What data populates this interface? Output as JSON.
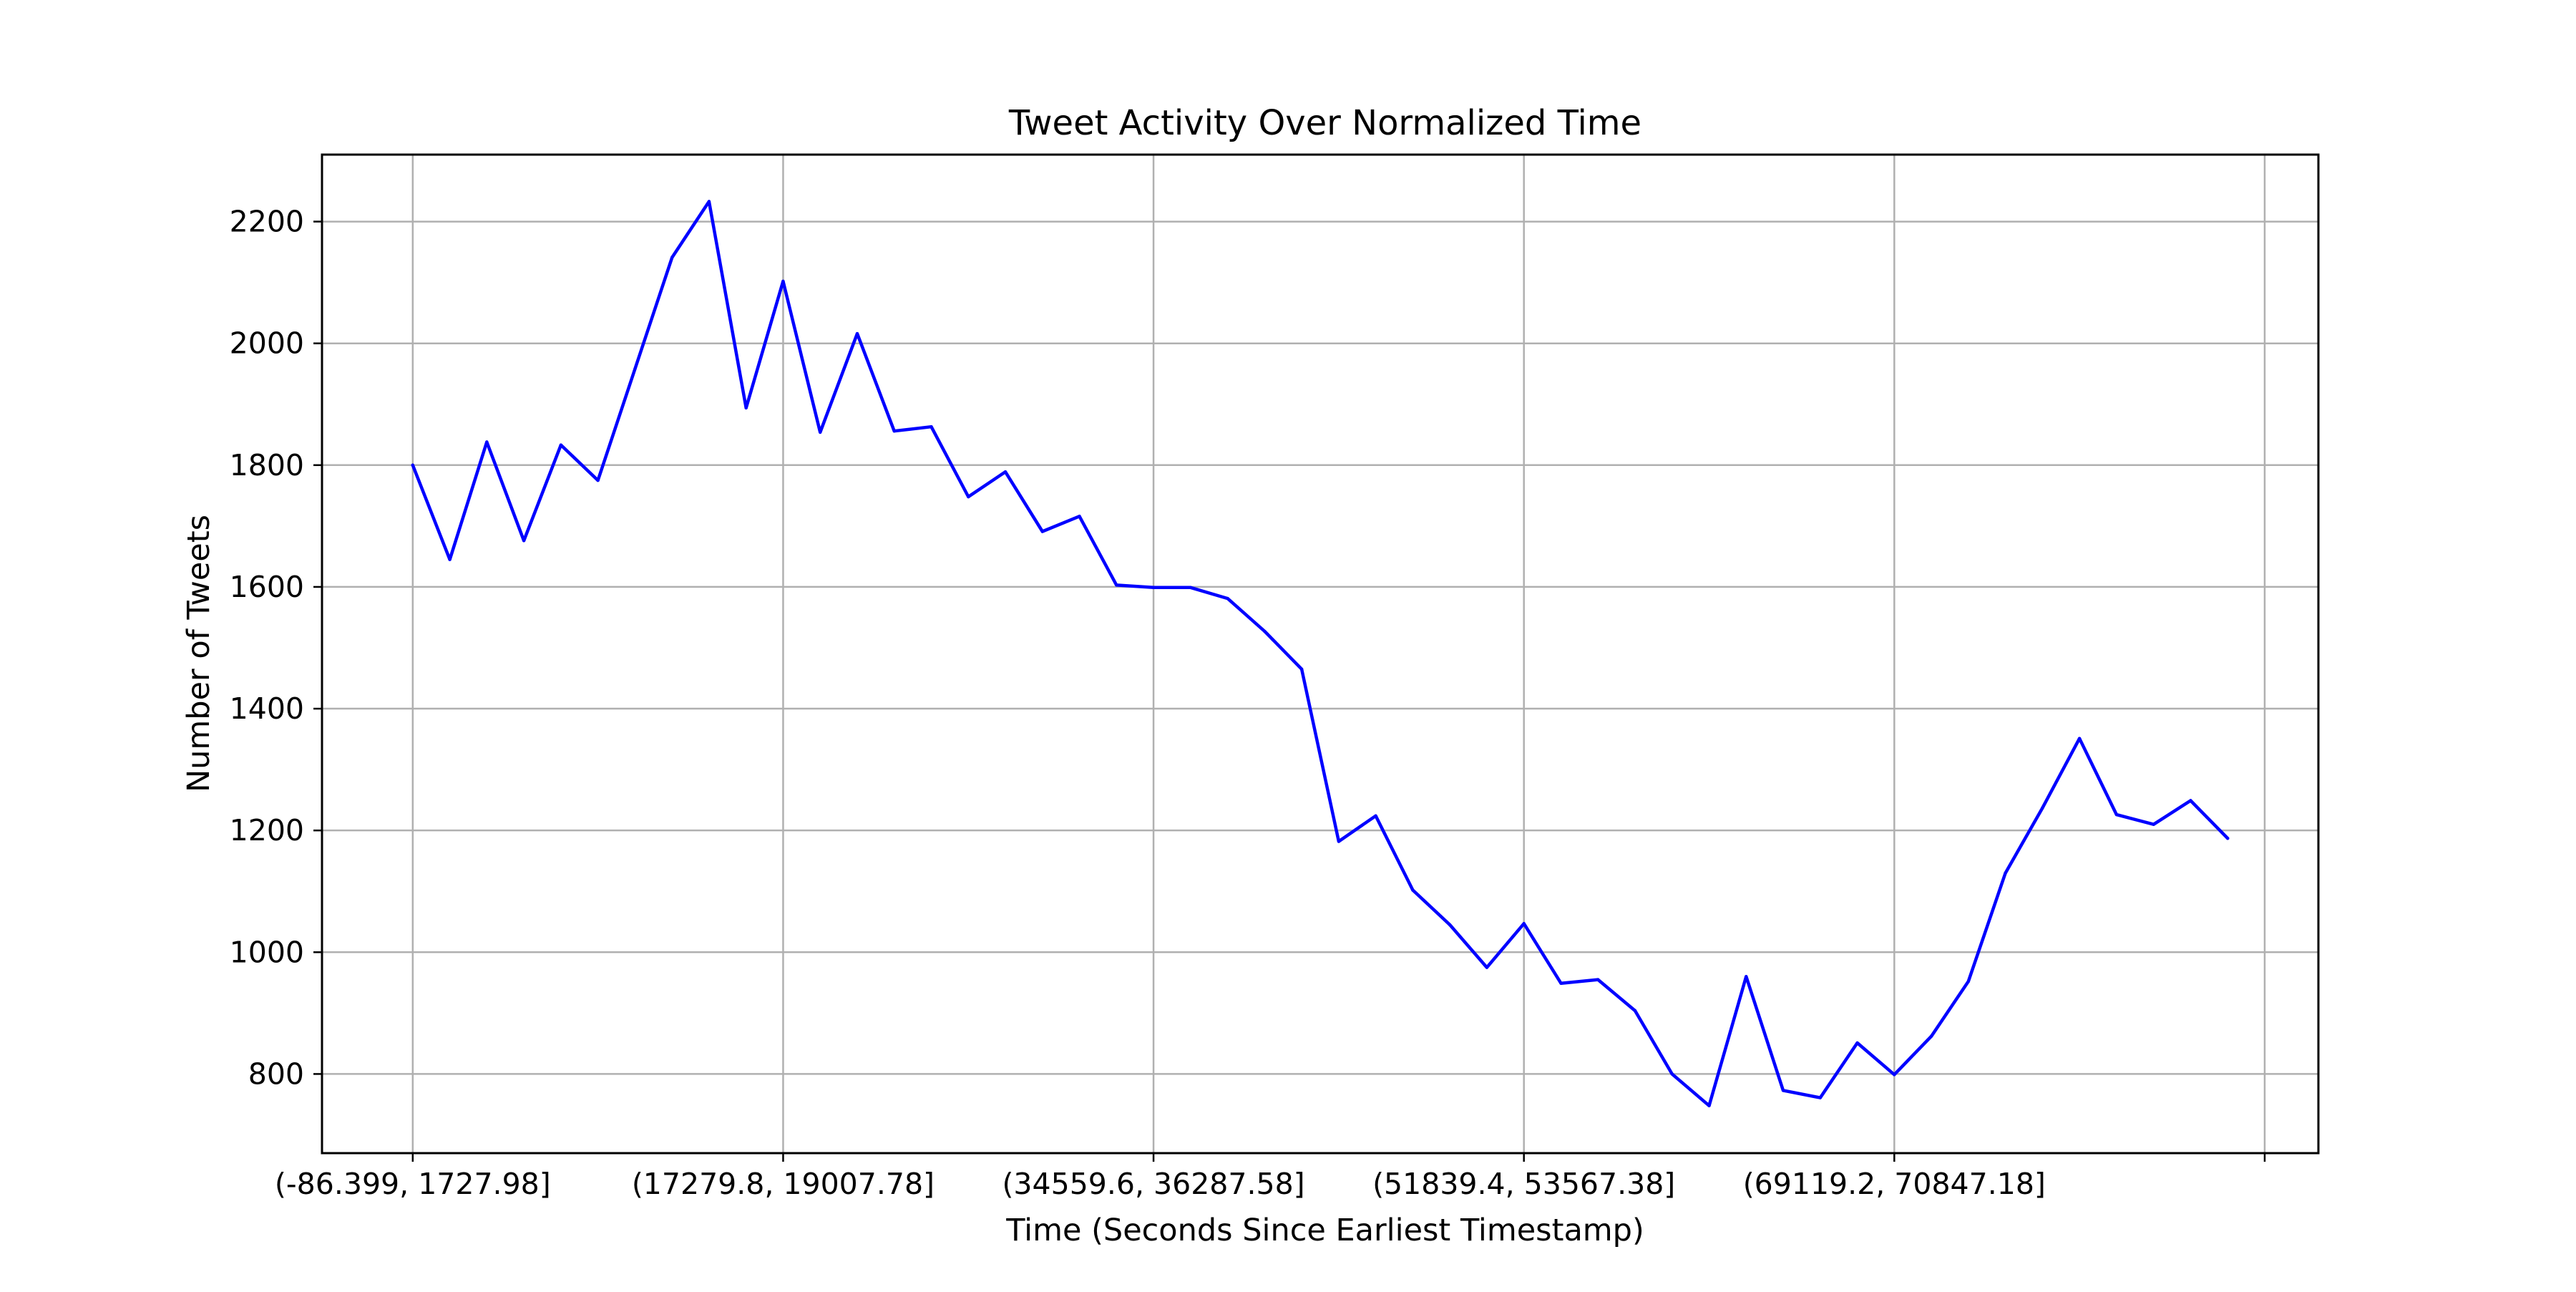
{
  "chart_data": {
    "type": "line",
    "title": "Tweet Activity Over Normalized Time",
    "xlabel": "Time (Seconds Since Earliest Timestamp)",
    "ylabel": "Number of Tweets",
    "x_tick_labels": [
      "(-86.399, 1727.98]",
      "(17279.8, 19007.78]",
      "(34559.6, 36287.58]",
      "(51839.4, 53567.38]",
      "(69119.2, 70847.18]",
      ""
    ],
    "x_tick_bin_index": [
      0,
      10,
      20,
      30,
      40,
      50
    ],
    "y_ticks": [
      800,
      1000,
      1200,
      1400,
      1600,
      1800,
      2000,
      2200
    ],
    "ylim": [
      670,
      2310
    ],
    "xlim_bins": [
      -2.45,
      51.45
    ],
    "grid": true,
    "legend": "none",
    "series": [
      {
        "color": "#0000ff",
        "values": [
          1800,
          1645,
          1838,
          1676,
          1833,
          1775,
          1958,
          2141,
          2233,
          1894,
          2102,
          1854,
          2016,
          1856,
          1863,
          1748,
          1789,
          1691,
          1716,
          1603,
          1599,
          1599,
          1581,
          1527,
          1465,
          1182,
          1224,
          1102,
          1045,
          975,
          1047,
          949,
          955,
          904,
          800,
          748,
          960,
          773,
          761,
          851,
          799,
          862,
          952,
          1130,
          1237,
          1351,
          1226,
          1210,
          1249,
          1187
        ]
      }
    ]
  }
}
